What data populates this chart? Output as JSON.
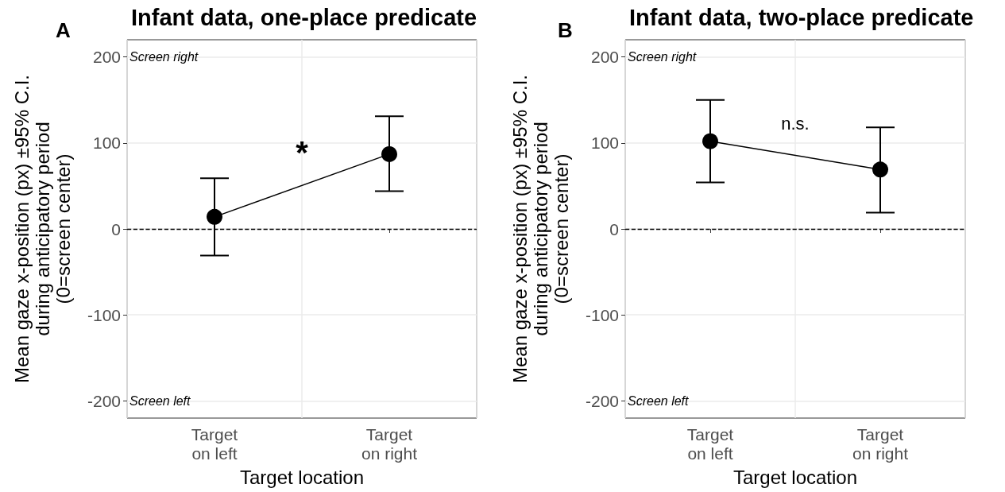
{
  "chart_data": [
    {
      "type": "line",
      "title": "Infant data, one-place predicate",
      "xlabel": "Target location",
      "ylabel": "Mean gaze x-position (px) ±95% C.I.\nduring anticipatory period\n(0=screen center)",
      "categories": [
        "Target\non left",
        "Target\non right"
      ],
      "series": [
        {
          "color": "#000000",
          "values": [
            14,
            87
          ],
          "errors": [
            [
              -31,
              59
            ],
            [
              44,
              131
            ]
          ]
        }
      ],
      "ylim": [
        -220,
        220
      ],
      "yticks": [
        -200,
        -100,
        0,
        100,
        200
      ],
      "grid": true,
      "marker": "circle",
      "line_style": "solid",
      "ref_lines": [
        {
          "axis": "y",
          "value": 0,
          "line_style": "dashed",
          "color": "#000000"
        }
      ],
      "annotations": [
        "A",
        "Screen right",
        "Screen left",
        "*"
      ]
    },
    {
      "type": "line",
      "title": "Infant data, two-place predicate",
      "xlabel": "Target location",
      "ylabel": "Mean gaze x-position (px) ±95% C.I.\nduring anticipatory period\n(0=screen center)",
      "categories": [
        "Target\non left",
        "Target\non right"
      ],
      "series": [
        {
          "color": "#000000",
          "values": [
            102,
            69
          ],
          "errors": [
            [
              54,
              150
            ],
            [
              19,
              118
            ]
          ]
        }
      ],
      "ylim": [
        -220,
        220
      ],
      "yticks": [
        -200,
        -100,
        0,
        100,
        200
      ],
      "grid": true,
      "marker": "circle",
      "line_style": "solid",
      "ref_lines": [
        {
          "axis": "y",
          "value": 0,
          "line_style": "dashed",
          "color": "#000000"
        }
      ],
      "annotations": [
        "B",
        "Screen right",
        "Screen left",
        "n.s."
      ]
    }
  ]
}
